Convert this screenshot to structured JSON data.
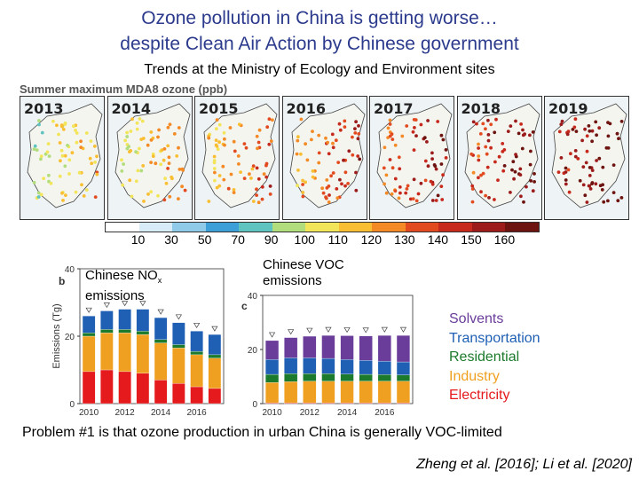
{
  "header": {
    "title_line1": "Ozone pollution in China is getting worse…",
    "title_line2": "despite Clean Air Action by Chinese government",
    "subtitle": "Trends at the Ministry of Ecology and Environment sites"
  },
  "maps": {
    "row_label": "Summer maximum MDA8 ozone (ppb)",
    "years": [
      "2013",
      "2014",
      "2015",
      "2016",
      "2017",
      "2018",
      "2019"
    ],
    "colorbar_ticks": [
      "10",
      "30",
      "50",
      "70",
      "90",
      "100",
      "110",
      "120",
      "130",
      "140",
      "150",
      "160"
    ],
    "colorbar_colors": [
      "#ffffff",
      "#d8ecf7",
      "#8fcbe9",
      "#3d9fd8",
      "#5fc3c0",
      "#b2dd7c",
      "#f3e55a",
      "#f9be32",
      "#f38a25",
      "#e24a1f",
      "#c72a1d",
      "#9c1c1c",
      "#6e1410"
    ]
  },
  "nox_panel": {
    "label_main": "Chinese NO",
    "label_sub": "x",
    "label_line2": "emissions",
    "panel_letter": "b",
    "ylabel": "Emissions (Tg)",
    "yticks": [
      "0",
      "20",
      "40"
    ],
    "xticks": [
      "2010",
      "2012",
      "2014",
      "2016"
    ]
  },
  "voc_panel": {
    "label_line1": "Chinese VOC",
    "label_line2": "emissions",
    "panel_letter": "c",
    "yticks": [
      "0",
      "20",
      "40"
    ],
    "xticks": [
      "2010",
      "2012",
      "2014",
      "2016"
    ]
  },
  "legend": {
    "items": [
      {
        "label": "Solvents",
        "color": "#6a3d9a"
      },
      {
        "label": "Transportation",
        "color": "#1f5fb4"
      },
      {
        "label": "Residential",
        "color": "#1b7a2b"
      },
      {
        "label": "Industry",
        "color": "#f0a020"
      },
      {
        "label": "Electricity",
        "color": "#e41a1c"
      }
    ]
  },
  "chart_data": [
    {
      "type": "bar",
      "stacked": true,
      "categories": [
        "2010",
        "2011",
        "2012",
        "2013",
        "2014",
        "2015",
        "2016",
        "2017"
      ],
      "xticks": [
        "2010",
        "2012",
        "2014",
        "2016"
      ],
      "ylim": [
        0,
        40
      ],
      "yticks": [
        0,
        20,
        40
      ],
      "ylabel": "Emissions (Tg)",
      "series": [
        {
          "name": "Electricity",
          "color": "#e41a1c",
          "values": [
            9.5,
            10,
            9.5,
            9,
            7,
            6,
            5,
            4.5
          ]
        },
        {
          "name": "Industry",
          "color": "#f0a020",
          "values": [
            10.5,
            11,
            11.5,
            11.5,
            11,
            10.5,
            9.5,
            9
          ]
        },
        {
          "name": "Residential",
          "color": "#1b7a2b",
          "values": [
            1,
            1,
            1,
            1,
            1,
            1,
            1,
            1
          ]
        },
        {
          "name": "Transportation",
          "color": "#1f5fb4",
          "values": [
            5,
            5.5,
            6,
            6.5,
            6.5,
            6.5,
            6,
            6
          ]
        }
      ]
    },
    {
      "type": "bar",
      "stacked": true,
      "categories": [
        "2010",
        "2011",
        "2012",
        "2013",
        "2014",
        "2015",
        "2016",
        "2017"
      ],
      "xticks": [
        "2010",
        "2012",
        "2014",
        "2016"
      ],
      "ylim": [
        0,
        40
      ],
      "yticks": [
        0,
        20,
        40
      ],
      "series": [
        {
          "name": "Electricity",
          "color": "#e41a1c",
          "values": [
            0.3,
            0.3,
            0.3,
            0.3,
            0.3,
            0.3,
            0.3,
            0.3
          ]
        },
        {
          "name": "Industry",
          "color": "#f0a020",
          "values": [
            7.5,
            7.8,
            8,
            8,
            8,
            8,
            8,
            8
          ]
        },
        {
          "name": "Residential",
          "color": "#1b7a2b",
          "values": [
            3,
            3,
            2.8,
            2.8,
            2.6,
            2.5,
            2.4,
            2.3
          ]
        },
        {
          "name": "Transportation",
          "color": "#1f5fb4",
          "values": [
            5.5,
            5.8,
            5.8,
            5.6,
            5.4,
            5.2,
            5,
            4.8
          ]
        },
        {
          "name": "Solvents",
          "color": "#6a3d9a",
          "values": [
            7,
            7.5,
            8,
            8.5,
            8.8,
            9,
            9.5,
            9.8
          ]
        }
      ]
    }
  ],
  "footer": {
    "note": "Problem #1 is that ozone production in urban China is generally VOC-limited",
    "citation": "Zheng et al. [2016]; Li et al. [2020]"
  }
}
